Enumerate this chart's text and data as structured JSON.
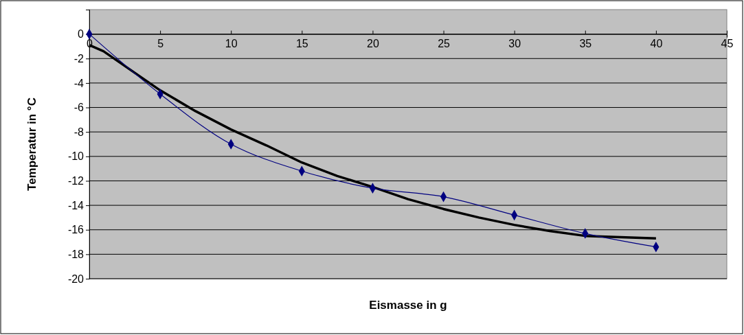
{
  "chart_data": {
    "type": "line",
    "xlabel": "Eismasse in g",
    "ylabel": "Temperatur in °C",
    "xlim": [
      0,
      45
    ],
    "xticks": [
      0,
      5,
      10,
      15,
      20,
      25,
      30,
      35,
      40,
      45
    ],
    "ylim": [
      -20,
      2
    ],
    "yticks": [
      -20,
      -18,
      -16,
      -14,
      -12,
      -10,
      -8,
      -6,
      -4,
      -2,
      0
    ],
    "grid": "y",
    "series": [
      {
        "color": "#000000",
        "marker": "none",
        "x": [
          0,
          1,
          2,
          3,
          4,
          5,
          7.5,
          10,
          12.5,
          15,
          17.5,
          20,
          22.5,
          25,
          27.5,
          30,
          32.5,
          35,
          37.5,
          40
        ],
        "values": [
          -0.9,
          -1.4,
          -2.2,
          -3.0,
          -3.8,
          -4.6,
          -6.3,
          -7.8,
          -9.1,
          -10.5,
          -11.6,
          -12.5,
          -13.5,
          -14.3,
          -15.0,
          -15.6,
          -16.1,
          -16.5,
          -16.6,
          -16.7
        ]
      },
      {
        "color": "#000080",
        "marker": "diamond",
        "x": [
          0,
          5,
          10,
          15,
          20,
          25,
          30,
          35,
          40
        ],
        "values": [
          0,
          -4.9,
          -9,
          -11.2,
          -12.6,
          -13.3,
          -14.8,
          -16.3,
          -17.4
        ]
      }
    ]
  }
}
